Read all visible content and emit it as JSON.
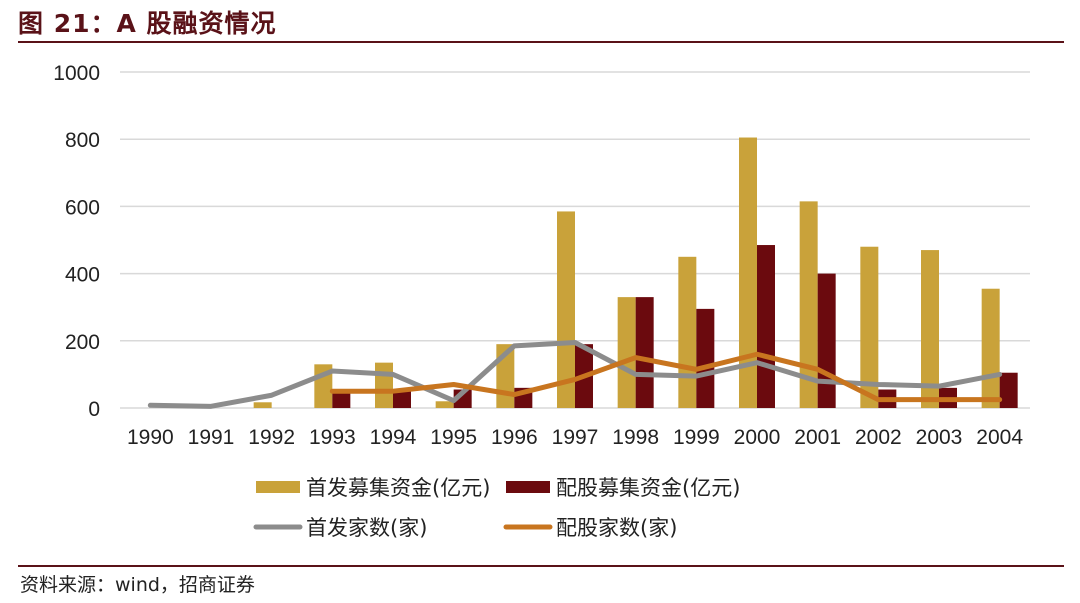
{
  "header": {
    "title": "图 21：A 股融资情况"
  },
  "footer": {
    "source": "资料来源：wind，招商证券"
  },
  "colors": {
    "ipo_funds": "#C9A23A",
    "rights_funds": "#6B0A0E",
    "ipo_count": "#8C8C8C",
    "rights_count": "#C8751F",
    "grid": "#D9D9D9",
    "title": "#5A1218"
  },
  "chart_data": {
    "type": "bar",
    "title": "A 股融资情况",
    "xlabel": "",
    "ylabel": "",
    "ylim": [
      0,
      1000
    ],
    "yticks": [
      0,
      200,
      400,
      600,
      800,
      1000
    ],
    "grid": true,
    "legend_position": "bottom",
    "categories": [
      "1990",
      "1991",
      "1992",
      "1993",
      "1994",
      "1995",
      "1996",
      "1997",
      "1998",
      "1999",
      "2000",
      "2001",
      "2002",
      "2003",
      "2004"
    ],
    "series": [
      {
        "name": "首发募集资金(亿元)",
        "type": "bar",
        "values": [
          0,
          0,
          17,
          130,
          135,
          20,
          190,
          585,
          330,
          450,
          805,
          615,
          480,
          470,
          355
        ]
      },
      {
        "name": "配股募集资金(亿元)",
        "type": "bar",
        "values": [
          0,
          0,
          0,
          45,
          55,
          55,
          60,
          190,
          330,
          295,
          485,
          400,
          55,
          60,
          105
        ]
      },
      {
        "name": "首发家数(家)",
        "type": "line",
        "values": [
          8,
          5,
          38,
          110,
          100,
          22,
          185,
          195,
          100,
          95,
          135,
          80,
          70,
          65,
          100
        ]
      },
      {
        "name": "配股家数(家)",
        "type": "line",
        "values": [
          null,
          null,
          null,
          50,
          50,
          70,
          40,
          85,
          150,
          115,
          160,
          115,
          25,
          25,
          25
        ]
      }
    ]
  }
}
